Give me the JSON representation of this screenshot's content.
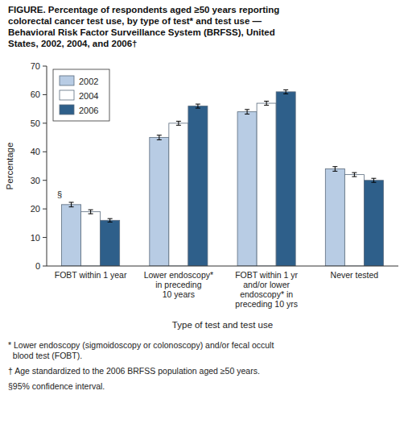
{
  "chart_data": {
    "type": "bar",
    "title": "FIGURE. Percentage of respondents aged ≥50 years reporting\ncolorectal cancer test use, by type of test* and test use —\nBehavioral Risk Factor Surveillance System (BRFSS), United\nStates, 2002, 2004, and 2006†",
    "categories": [
      "FOBT within 1 year",
      "Lower endoscopy*\nin preceding\n10 years",
      "FOBT within 1 yr\nand/or lower\nendoscopy* in\npreceding 10 yrs",
      "Never tested"
    ],
    "series": [
      {
        "name": "2002",
        "color": "#b8cce4",
        "values": [
          21.5,
          45.0,
          54.0,
          34.0
        ],
        "errors": [
          0.8,
          0.8,
          0.8,
          0.8
        ]
      },
      {
        "name": "2004",
        "color": "#ffffff",
        "values": [
          19.0,
          50.0,
          57.0,
          32.0
        ],
        "errors": [
          0.7,
          0.7,
          0.7,
          0.7
        ]
      },
      {
        "name": "2006",
        "color": "#2e5f8a",
        "values": [
          16.0,
          56.0,
          61.0,
          30.0
        ],
        "errors": [
          0.6,
          0.7,
          0.7,
          0.7
        ]
      }
    ],
    "ylabel": "Percentage",
    "xlabel": "Type of test and test use",
    "ylim": [
      0,
      70
    ],
    "yticks": [
      0,
      10,
      20,
      30,
      40,
      50,
      60,
      70
    ],
    "grid": false,
    "legend": "upper left",
    "annotations": [
      "§"
    ],
    "footnotes": [
      "* Lower endoscopy (sigmoidoscopy or colonoscopy) and/or fecal occult\n  blood test (FOBT).",
      "† Age standardized to the 2006 BRFSS population aged ≥50 years.",
      "§95% confidence interval."
    ]
  }
}
